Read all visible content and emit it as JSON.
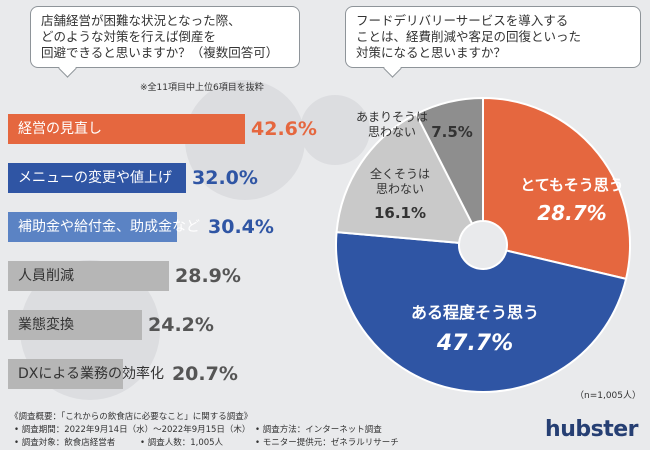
{
  "left_question": {
    "lines": [
      "店舗経営が困難な状況となった際、",
      "どのような対策を行えば倒産を",
      "回避できると思いますか？（複数回答可）"
    ]
  },
  "left_note": "※全11項目中上位6項目を抜粋",
  "right_question": {
    "lines": [
      "フードデリバリーサービスを導入する",
      "ことは、経費削減や客足の回復といった",
      "対策になると思いますか？"
    ]
  },
  "sample_note": "（n=1,005人）",
  "footer": {
    "title": "《調査概要：「これからの飲食店に必要なこと」に関する調査》",
    "period": "• 調査期間：2022年9月14日（水）〜2022年9月15日（木）",
    "method": "• 調査方法：インターネット調査",
    "target": "• 調査対象：飲食店経営者",
    "count": "• 調査人数：1,005人",
    "provider": "• モニター提供元：ゼネラルリサーチ"
  },
  "brand": "hubster",
  "colors": {
    "orange": "#e5673f",
    "navy": "#2f55a4",
    "light_blue": "#5b83c4",
    "gray_bar": "#b6b6b6",
    "pie_gray_light": "#c9c9c9",
    "pie_gray_dark": "#8e8e8e"
  },
  "chart_data": [
    {
      "type": "bar",
      "orientation": "horizontal",
      "title": "店舗経営が困難な状況となった際、どのような対策を行えば倒産を回避できると思いますか？（複数回答可）",
      "unit": "%",
      "categories": [
        "経営の見直し",
        "メニューの変更や値上げ",
        "補助金や給付金、助成金など",
        "人員削減",
        "業態変換",
        "DXによる業務の効率化"
      ],
      "values": [
        42.6,
        32.0,
        30.4,
        28.9,
        24.2,
        20.7
      ],
      "value_labels": [
        "42.6%",
        "32.0%",
        "30.4%",
        "28.9%",
        "24.2%",
        "20.7%"
      ],
      "bar_colors": [
        "#e5673f",
        "#2f55a4",
        "#5b83c4",
        "#b6b6b6",
        "#b6b6b6",
        "#b6b6b6"
      ],
      "label_colors": [
        "#ffffff",
        "#ffffff",
        "#ffffff",
        "#333333",
        "#333333",
        "#333333"
      ],
      "value_colors": [
        "#e5673f",
        "#2f55a4",
        "#2f55a4",
        "#555555",
        "#555555",
        "#555555"
      ],
      "xlim": [
        0,
        45
      ]
    },
    {
      "type": "pie",
      "style": "donut",
      "title": "フードデリバリーサービスを導入することは、経費削減や客足の回復といった対策になると思いますか？",
      "slices": [
        {
          "label": "とてもそう思う",
          "label_lines": [
            "とてもそう思う"
          ],
          "value": 28.7,
          "value_label": "28.7%",
          "color": "#e5673f",
          "text_color": "#ffffff"
        },
        {
          "label": "ある程度そう思う",
          "label_lines": [
            "ある程度そう思う"
          ],
          "value": 47.7,
          "value_label": "47.7%",
          "color": "#2f55a4",
          "text_color": "#ffffff"
        },
        {
          "label": "全くそうは思わない",
          "label_lines": [
            "全くそうは",
            "思わない"
          ],
          "value": 16.1,
          "value_label": "16.1%",
          "color": "#c9c9c9",
          "text_color": "#333333"
        },
        {
          "label": "あまりそうは思わない",
          "label_lines": [
            "あまりそうは",
            "思わない"
          ],
          "value": 7.5,
          "value_label": "7.5%",
          "color": "#8e8e8e",
          "text_color": "#333333"
        }
      ],
      "n_label": "（n=1,005人）"
    }
  ]
}
